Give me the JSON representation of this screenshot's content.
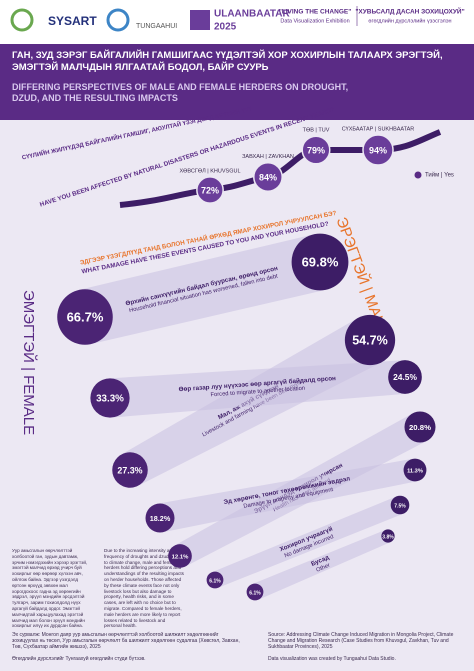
{
  "header": {
    "logos": [
      "SYSART",
      "TUNGAAHUI",
      "ULAANBAATAR",
      "2025"
    ],
    "exhibition_en": "\"LIVING THE CHANGE\"",
    "exhibition_en_sub": "Data Visualization Exhibition",
    "exhibition_mn": "\"ХУВЬСАЛД ДАСАН ЗОХИЦОХУЙ\"",
    "exhibition_mn_sub": "өгөгдлийн дүрслэлийн үзэсгэлэн"
  },
  "title_mn": "ГАН, ЗУД ЗЭРЭГ БАЙГАЛИЙН ГАМШИГААС ҮҮДЭЛТЭЙ ХОР ХОХИРЛЫН ТАЛААРХ ЭРЭГТЭЙ, ЭМЭГТЭЙ МАЛЧДЫН ЯЛГААТАЙ БОДОЛ, БАЙР СУУРЬ",
  "title_en": "DIFFERING PERSPECTIVES OF MALE AND FEMALE HERDERS ON DROUGHT, DZUD, AND THE RESULTING IMPACTS",
  "section1": {
    "question_mn": "СҮҮЛИЙН ЖИЛҮҮДЭД БАЙГАЛИЙН ГАМШИГ, АЮУЛТАЙ ҮЗЭГДЭЛД ӨРТСӨН ҮҮ?",
    "question_en": "HAVE YOU BEEN AFFECTED BY NATURAL DISASTERS OR HAZARDOUS EVENTS IN RECENT YEARS?",
    "legend": "Тийм | Yes",
    "provinces": [
      {
        "label": "ХӨВСГӨЛ | KHUVSGUL",
        "value": 72,
        "value_label": "72%"
      },
      {
        "label": "ЗАВХАН | ZAVKHAN",
        "value": 84,
        "value_label": "84%"
      },
      {
        "label": "ТӨВ | TUV",
        "value": 79,
        "value_label": "79%"
      },
      {
        "label": "СҮХБААТАР | SUKHBAATAR",
        "value": 94,
        "value_label": "94%"
      }
    ]
  },
  "section2": {
    "question_mn": "ЭДГЭЭР ҮЗЭГДЛҮҮД ТАНД БОЛОН ТАНАЙ ӨРХӨД ЯМАР ХОХИРОЛ УЧРУУЛСАН БЭ?",
    "question_en": "WHAT DAMAGE HAVE THESE EVENTS CAUSED TO YOU AND YOUR HOUSEHOLD?",
    "male_label": "ЭРЭГТЭЙ | MALE",
    "female_label": "ЭМЭГТЭЙ | FEMALE",
    "impacts": [
      {
        "label_mn": "Өрхийн санхүүгийн байдал буурсан, өрөнд орсон",
        "label_en": "Household financial situation has worsened, fallen into debt",
        "female": 66.7,
        "female_label": "66.7%",
        "male": 69.8,
        "male_label": "69.8%"
      },
      {
        "label_mn": "Мал, аж ахуй сүйдсэн",
        "label_en": "Livestock and farming have been destroyed",
        "female": 27.3,
        "female_label": "27.3%",
        "male": 54.7,
        "male_label": "54.7%"
      },
      {
        "label_mn": "Өөр газар луу нүүхээс өөр аргагүй байдалд орсон",
        "label_en": "Forced to migrate to another location",
        "female": 33.3,
        "female_label": "33.3%",
        "male": 24.5,
        "male_label": "24.5%"
      },
      {
        "label_mn": "Эрүүл мэндэд хохирол учирсан",
        "label_en": "Health has been affected",
        "female": 12.1,
        "female_label": "12.1%",
        "male": 20.8,
        "male_label": "20.8%"
      },
      {
        "label_mn": "Эд хөрөнгө, тоног төхөөрөмжийн эвдрэл",
        "label_en": "Damage to property and equipment",
        "female": 18.2,
        "female_label": "18.2%",
        "male": 11.3,
        "male_label": "11.3%"
      },
      {
        "label_mn": "Хохирол учраагүй",
        "label_en": "No damage incurred",
        "female": 6.1,
        "female_label": "6.1%",
        "male": 7.5,
        "male_label": "7.5%"
      },
      {
        "label_mn": "Бусад",
        "label_en": "Other",
        "female": 6.1,
        "female_label": "6.1%",
        "male": 3.8,
        "male_label": "3.8%"
      }
    ]
  },
  "notes": [
    "Уур амьсгалын өөрчлөлттэй холбоотой ган, зудын давтамж, эрчим нэмэгдэхийн хэрээр эрэгтэй, эмэгтэй малчид өрхөд учирч буй хохирлыг өөр өөрөөр хүлээн авч, ойлгож байна. Эдгээр үзэгдэлд өртсөн өрхүүд зөвхөн мал хорогдохоос гадна эд хөрөнгийн эвдрэл, эрүүл мэндийн эрсдэлтэй тулгарч, зарим тохиолдолд нүүх аргагүй байдалд ордог. Эмэгтэй малчидтай харьцуулахад эрэгтэй малчид мал болон эрүүл мэндийн хохирлыг илүү их дурдсан байна.",
    "Due to the increasing intensity and frequency of droughts and dzud linked to climate change, male and female herders hold differing perceptions and understandings of the resulting impacts on herder households. Those affected by these climate events face not only livestock loss but also damage to property, health risks, and in some cases, are left with no choice but to migrate. Compared to female herders, male herders are more likely to report losses related to livestock and personal health."
  ],
  "footer": {
    "source_mn": "Эх сурвалж: Монгол даяр уур амьсгалын өөрчлөлттэй холбоотой шилжилт хөдөлгөөнийг зохицуулах нь төсөл, Уур амьсгалын өөрчлөлт ба шилжилт хөдөлгөөн судалгаа (Хөвсгөл, Завхан, Төв, Сүхбаатар аймгийн жишээ), 2025",
    "source_en": "Source: Addressing Climate Change Induced Migration in Mongolia Project, Climate Change and Migration Research (Case Studies from Khuvsgul, Zavkhan, Tuv and Sukhbaatar Provinces), 2025",
    "credit_mn": "Өгөгдлийн дүрслэлийг Тунгаахуй өгөгдлийн студи бүтээв.",
    "credit_en": "Data visualization was created by Tungaahui Data Studio."
  }
}
